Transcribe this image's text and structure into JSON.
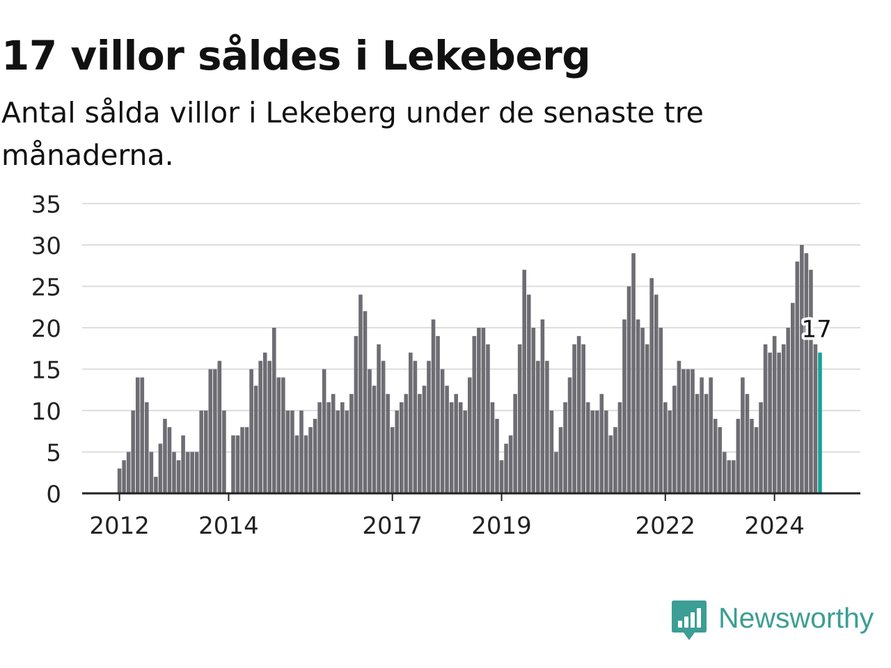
{
  "header": {
    "title": "17 villor såldes i Lekeberg",
    "subtitle": "Antal sålda villor i Lekeberg under de senaste tre månaderna."
  },
  "brand": {
    "name": "Newsworthy",
    "icon": "newsworthy-logo-icon",
    "color": "#3c9e94"
  },
  "colors": {
    "bar": "#6e6d73",
    "highlight": "#17a398",
    "grid": "#dddddd",
    "axis": "#222222",
    "text": "#222222"
  },
  "chart_data": {
    "type": "bar",
    "title": "17 villor såldes i Lekeberg",
    "subtitle": "Antal sålda villor i Lekeberg under de senaste tre månaderna.",
    "xlabel": "",
    "ylabel": "",
    "ylim": [
      0,
      35
    ],
    "yticks": [
      0,
      5,
      10,
      15,
      20,
      25,
      30,
      35
    ],
    "xticks": [
      {
        "label": "2012",
        "index": 0
      },
      {
        "label": "2014",
        "index": 24
      },
      {
        "label": "2017",
        "index": 60
      },
      {
        "label": "2019",
        "index": 84
      },
      {
        "label": "2022",
        "index": 120
      },
      {
        "label": "2024",
        "index": 144
      }
    ],
    "grid": true,
    "period": "monthly, rolling three-month total",
    "start": "2012-01",
    "values": [
      3,
      4,
      5,
      10,
      14,
      14,
      11,
      5,
      2,
      6,
      9,
      8,
      5,
      4,
      7,
      5,
      5,
      5,
      10,
      10,
      15,
      15,
      16,
      10,
      null,
      7,
      7,
      8,
      8,
      15,
      13,
      16,
      17,
      16,
      20,
      14,
      14,
      10,
      10,
      7,
      10,
      7,
      8,
      9,
      11,
      15,
      11,
      12,
      10,
      11,
      10,
      12,
      19,
      24,
      22,
      15,
      13,
      18,
      16,
      12,
      8,
      10,
      11,
      12,
      17,
      16,
      12,
      13,
      16,
      21,
      19,
      15,
      13,
      11,
      12,
      11,
      10,
      14,
      19,
      20,
      20,
      18,
      11,
      9,
      4,
      6,
      7,
      12,
      18,
      27,
      24,
      20,
      16,
      21,
      16,
      10,
      5,
      8,
      11,
      14,
      18,
      19,
      18,
      11,
      10,
      10,
      12,
      10,
      7,
      8,
      11,
      21,
      25,
      29,
      21,
      20,
      18,
      26,
      24,
      20,
      11,
      10,
      13,
      16,
      15,
      15,
      15,
      12,
      14,
      12,
      14,
      9,
      8,
      5,
      4,
      4,
      9,
      14,
      12,
      9,
      8,
      11,
      18,
      17,
      19,
      17,
      18,
      20,
      23,
      28,
      30,
      29,
      27,
      18,
      17
    ],
    "highlight": {
      "index": 154,
      "value": 17,
      "label": "17"
    }
  }
}
